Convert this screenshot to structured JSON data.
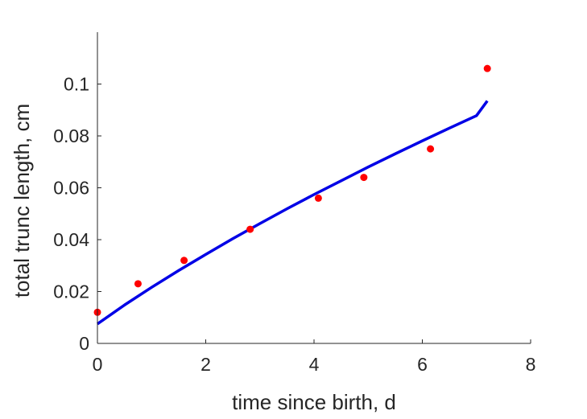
{
  "chart_data": {
    "type": "scatter",
    "xlabel": "time since birth, d",
    "ylabel": "total trunc length, cm",
    "xlim": [
      0,
      8
    ],
    "ylim": [
      0,
      0.12
    ],
    "x_ticks": [
      0,
      2,
      4,
      6,
      8
    ],
    "x_tick_labels": [
      "0",
      "2",
      "4",
      "6",
      "8"
    ],
    "y_ticks": [
      0,
      0.02,
      0.04,
      0.06,
      0.08,
      0.1
    ],
    "y_tick_labels": [
      "0",
      "0.02",
      "0.04",
      "0.06",
      "0.08",
      "0.1"
    ],
    "grid": false,
    "series": [
      {
        "kind": "scatter",
        "color": "#ff0000",
        "x": [
          0,
          0.75,
          1.6,
          2.82,
          4.08,
          4.92,
          6.15,
          7.2
        ],
        "y": [
          0.012,
          0.023,
          0.032,
          0.044,
          0.056,
          0.064,
          0.075,
          0.106
        ]
      },
      {
        "kind": "line",
        "color": "#0000e6",
        "x": [
          0,
          0.5,
          1,
          1.5,
          2,
          2.5,
          3,
          3.5,
          4,
          4.5,
          5,
          5.5,
          6,
          6.5,
          7,
          7.2
        ],
        "y": [
          0.0075,
          0.0148,
          0.0216,
          0.0281,
          0.0343,
          0.0404,
          0.0462,
          0.0519,
          0.0574,
          0.0627,
          0.068,
          0.0731,
          0.0781,
          0.083,
          0.0878,
          0.0935
        ]
      }
    ]
  }
}
